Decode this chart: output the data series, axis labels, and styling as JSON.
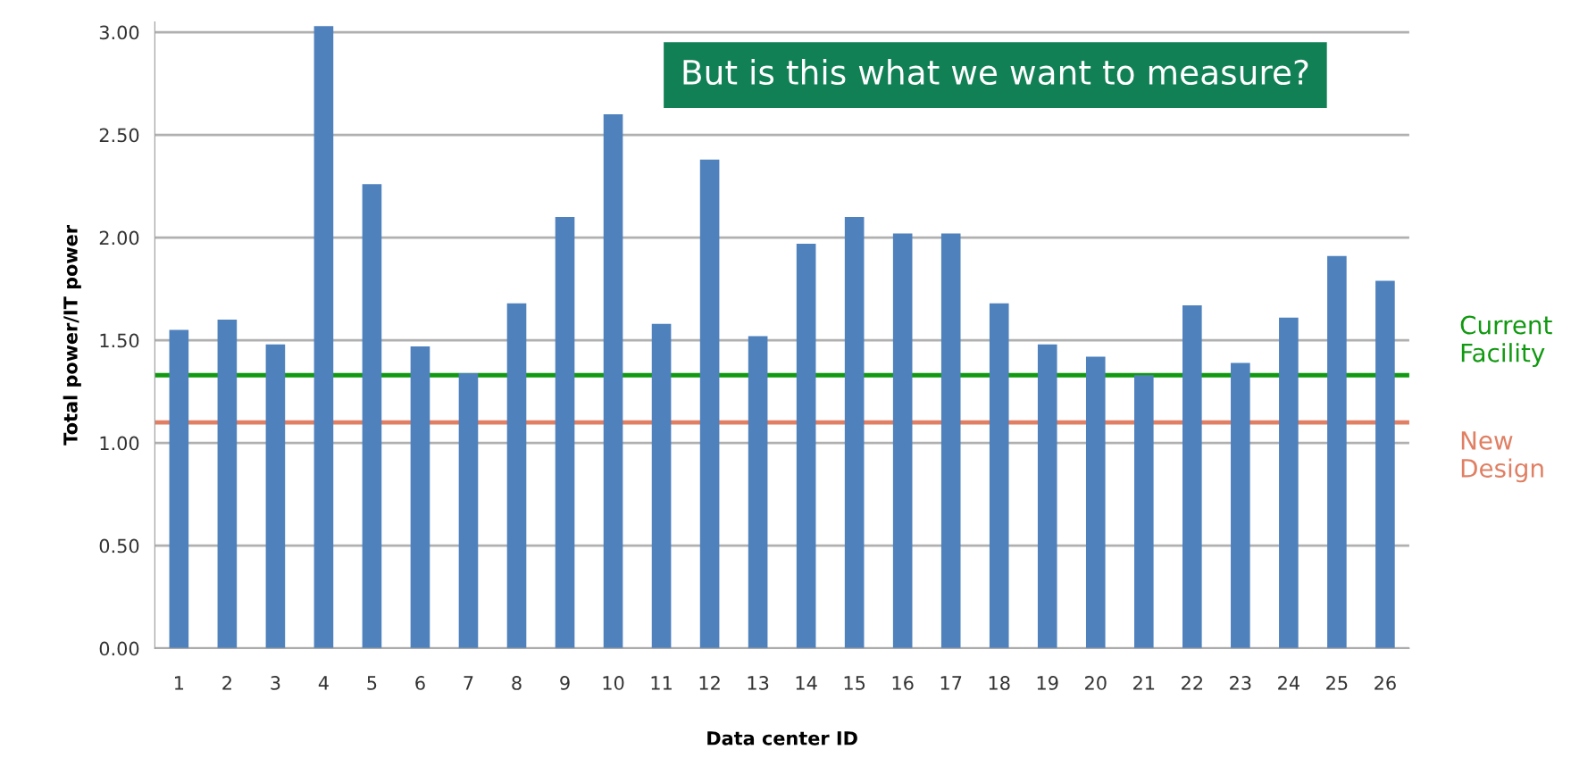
{
  "chart_data": {
    "type": "bar",
    "xlabel": "Data center ID",
    "ylabel": "Total power/IT power",
    "categories": [
      "1",
      "2",
      "3",
      "4",
      "5",
      "6",
      "7",
      "8",
      "9",
      "10",
      "11",
      "12",
      "13",
      "14",
      "15",
      "16",
      "17",
      "18",
      "19",
      "20",
      "21",
      "22",
      "23",
      "24",
      "25",
      "26"
    ],
    "values": [
      1.55,
      1.6,
      1.48,
      3.03,
      2.26,
      1.47,
      1.34,
      1.68,
      2.1,
      2.6,
      1.58,
      2.38,
      1.52,
      1.97,
      2.1,
      2.02,
      2.02,
      1.68,
      1.48,
      1.42,
      1.33,
      1.67,
      1.39,
      1.61,
      1.91,
      1.79
    ],
    "color": "#4f81bd",
    "ylim": [
      0,
      3.05
    ],
    "yticks": [
      {
        "value": 0,
        "label": "0.00"
      },
      {
        "value": 0.5,
        "label": "0.50"
      },
      {
        "value": 1,
        "label": "1.00"
      },
      {
        "value": 1.5,
        "label": "1.50"
      },
      {
        "value": 2,
        "label": "2.00"
      },
      {
        "value": 2.5,
        "label": "2.50"
      },
      {
        "value": 3,
        "label": "3.00"
      }
    ],
    "grid": "y",
    "ref_lines": [
      {
        "axis": "y",
        "value": 1.33,
        "label": "Current Facility",
        "color": "#119911"
      },
      {
        "axis": "y",
        "value": 1.1,
        "label": "New Design",
        "color": "#e07f63"
      }
    ],
    "annotations": [
      "But is this what we want to measure?"
    ]
  }
}
